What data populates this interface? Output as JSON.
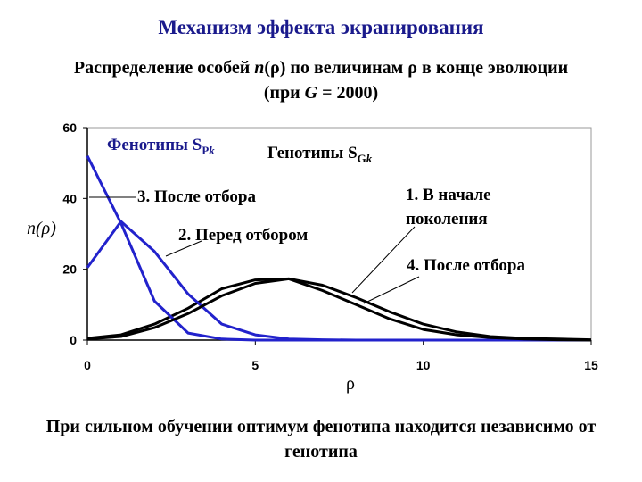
{
  "title": "Механизм эффекта экранирования",
  "subtitle": {
    "part1": "Распределение особей ",
    "n_symbol": "n",
    "part2": "(ρ) по величинам ρ в конце эволюции (при ",
    "g_symbol": "G",
    "part3": " = 2000)"
  },
  "footer": "При сильном обучении оптимум фенотипа находится независимо от генотипа",
  "colors": {
    "blue": "#2222cc",
    "black": "#000000",
    "title": "#1a1a8c"
  },
  "chart_data": {
    "type": "line",
    "xlabel": "ρ",
    "ylabel": "n(ρ)",
    "xlim": [
      0,
      15
    ],
    "ylim": [
      0,
      60
    ],
    "xticks": [
      0,
      5,
      10,
      15
    ],
    "yticks": [
      0,
      20,
      40,
      60
    ],
    "grid": false,
    "group_labels": {
      "phenotypes": {
        "main": "Фенотипы S",
        "sub": "P",
        "sub_italic": "k"
      },
      "genotypes": {
        "main": "Генотипы S",
        "sub": "G",
        "sub_italic": "k"
      }
    },
    "series": [
      {
        "name": "1. В начале поколения",
        "label_lines": [
          "1. В начале",
          "поколения"
        ],
        "color": "#000000",
        "x": [
          0,
          1,
          2,
          3,
          4,
          5,
          6,
          7,
          8,
          9,
          10,
          11,
          12,
          13,
          14,
          15
        ],
        "y": [
          0.5,
          1.5,
          4.5,
          9,
          14.5,
          17,
          17.3,
          15.5,
          12,
          8,
          4.5,
          2.3,
          1,
          0.5,
          0.3,
          0.1
        ]
      },
      {
        "name": "2. Перед отбором",
        "label_lines": [
          "2. Перед отбором"
        ],
        "color": "#2222cc",
        "x": [
          0,
          1,
          2,
          3,
          4,
          5,
          6,
          7,
          8,
          9,
          10,
          11,
          12,
          13,
          14,
          15
        ],
        "y": [
          20.5,
          33.5,
          25,
          13,
          4.5,
          1.5,
          0.3,
          0.1,
          0,
          0,
          0,
          0,
          0,
          0,
          0,
          0
        ]
      },
      {
        "name": "3. После отбора",
        "label_lines": [
          "3. После отбора"
        ],
        "color": "#2222cc",
        "x": [
          0,
          1,
          2,
          3,
          4,
          5,
          6,
          7,
          8,
          9,
          10,
          11,
          12,
          13,
          14,
          15
        ],
        "y": [
          52,
          33,
          11,
          2,
          0.3,
          0,
          0,
          0,
          0,
          0,
          0,
          0,
          0,
          0,
          0,
          0
        ]
      },
      {
        "name": "4. После отбора",
        "label_lines": [
          "4. После отбора"
        ],
        "color": "#000000",
        "x": [
          0,
          1,
          2,
          3,
          4,
          5,
          6,
          7,
          8,
          9,
          10,
          11,
          12,
          13,
          14,
          15
        ],
        "y": [
          0.3,
          1,
          3.5,
          7.5,
          12.5,
          16,
          17.3,
          14,
          10,
          6,
          3,
          1.5,
          0.7,
          0.3,
          0.1,
          0
        ]
      }
    ]
  }
}
